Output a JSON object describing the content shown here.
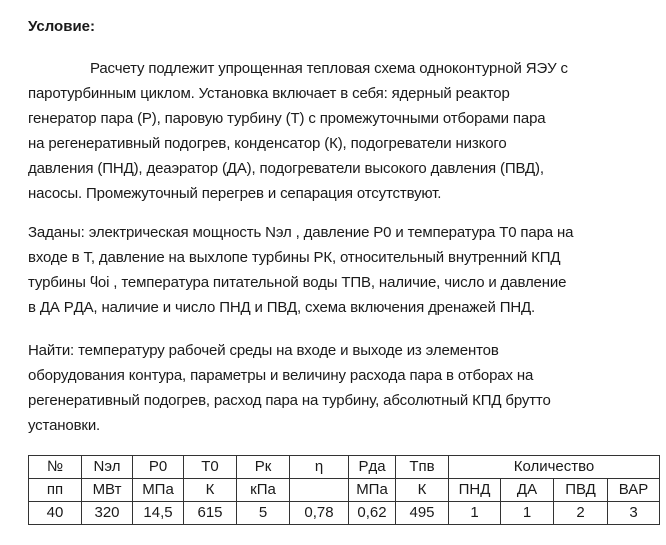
{
  "title": "Условие:",
  "paragraph1": [
    "Расчету подлежит упрощенная тепловая схема одноконтурной ЯЭУ с",
    "паротурбинным циклом. Установка включает в себя: ядерный реактор",
    "генератор пара (Р), паровую турбину (Т) с промежуточными отборами пара",
    "на регенеративный подогрев, конденсатор (К), подогреватели низкого",
    "давления (ПНД), деаэратор (ДА), подогреватели высокого давления (ПВД),",
    "насосы. Промежуточный перегрев и сепарация отсутствуют."
  ],
  "paragraph2": [
    "Заданы: электрическая мощность Nэл , давление P0 и температура T0 пара на",
    "входе в Т, давление на выхлопе турбины PК, относительный внутренний КПД",
    "турбины ϥoi , температура питательной воды ТПВ, наличие, число и давление",
    "в ДА PДА, наличие и число ПНД и ПВД, схема включения дренажей ПНД."
  ],
  "paragraph3": [
    "Найти: температуру рабочей среды на входе и выходе из элементов",
    "оборудования контура, параметры и величину расхода пара в отборах на",
    "регенеративный подогрев, расход пара на турбину, абсолютный КПД брутто",
    "установки."
  ],
  "table": {
    "headers": [
      {
        "top": "№",
        "bottom": "пп"
      },
      {
        "top": "Nэл",
        "bottom": "МВт"
      },
      {
        "top": "P0",
        "bottom": "МПа"
      },
      {
        "top": "T0",
        "bottom": "К"
      },
      {
        "top": "Pк",
        "bottom": "кПа"
      },
      {
        "top": "η",
        "bottom": ""
      },
      {
        "top": "Pда",
        "bottom": "МПа"
      },
      {
        "top": "Tпв",
        "bottom": "К"
      }
    ],
    "group_header": "Количество",
    "subheaders": [
      "ПНД",
      "ДА",
      "ПВД",
      "ВАР"
    ],
    "row": [
      "40",
      "320",
      "14,5",
      "615",
      "5",
      "0,78",
      "0,62",
      "495",
      "1",
      "1",
      "2",
      "3"
    ]
  }
}
